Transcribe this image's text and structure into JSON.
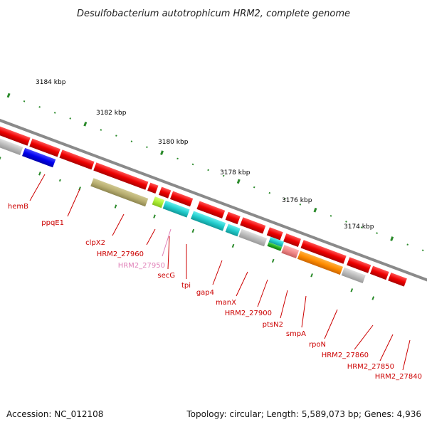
{
  "title": "Desulfobacterium autotrophicum HRM2, complete genome",
  "footer": {
    "accession": "Accession: NC_012108",
    "summary": "Topology: circular; Length: 5,589,073 bp; Genes: 4,936"
  },
  "colors": {
    "label_red": "#cc0000",
    "label_pink": "#e080b8",
    "backbone": "#888888",
    "tick_dot": "#2a8a2a"
  },
  "ticks": [
    {
      "label": "3184 kbp",
      "pos_kbp": 3184
    },
    {
      "label": "3182 kbp",
      "pos_kbp": 3182
    },
    {
      "label": "3180 kbp",
      "pos_kbp": 3180
    },
    {
      "label": "3178 kbp",
      "pos_kbp": 3178
    },
    {
      "label": "3176 kbp",
      "pos_kbp": 3176
    },
    {
      "label": "3174 kbp",
      "pos_kbp": 3174
    }
  ],
  "labels": [
    {
      "text": "hemB",
      "color": "red"
    },
    {
      "text": "ppqE1",
      "color": "red"
    },
    {
      "text": "clpX2",
      "color": "red"
    },
    {
      "text": "HRM2_27960",
      "color": "red"
    },
    {
      "text": "HRM2_27950",
      "color": "pink"
    },
    {
      "text": "secG",
      "color": "red"
    },
    {
      "text": "tpi",
      "color": "red"
    },
    {
      "text": "gap4",
      "color": "red"
    },
    {
      "text": "manX",
      "color": "red"
    },
    {
      "text": "HRM2_27900",
      "color": "red"
    },
    {
      "text": "ptsN2",
      "color": "red"
    },
    {
      "text": "smpA",
      "color": "red"
    },
    {
      "text": "rpoN",
      "color": "red"
    },
    {
      "text": "HRM2_27860",
      "color": "red"
    },
    {
      "text": "HRM2_27850",
      "color": "red"
    },
    {
      "text": "HRM2_27840",
      "color": "red"
    }
  ]
}
